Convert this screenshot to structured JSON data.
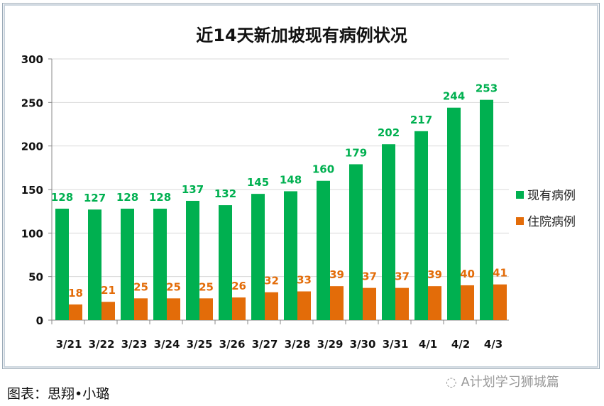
{
  "chart_data": {
    "type": "bar",
    "title": "近14天新加坡现有病例状况",
    "categories": [
      "3/21",
      "3/22",
      "3/23",
      "3/24",
      "3/25",
      "3/26",
      "3/27",
      "3/28",
      "3/29",
      "3/30",
      "3/31",
      "4/1",
      "4/2",
      "4/3"
    ],
    "series": [
      {
        "name": "现有病例",
        "color": "#00b050",
        "values": [
          128,
          127,
          128,
          128,
          137,
          132,
          145,
          148,
          160,
          179,
          202,
          217,
          244,
          253
        ]
      },
      {
        "name": "住院病例",
        "color": "#e36c09",
        "values": [
          18,
          21,
          25,
          25,
          25,
          26,
          32,
          33,
          39,
          37,
          37,
          39,
          40,
          41
        ]
      }
    ],
    "ylim": [
      0,
      300
    ],
    "yticks": [
      0,
      50,
      100,
      150,
      200,
      250,
      300
    ],
    "grid": true,
    "legend": "right"
  },
  "caption": "图表：思翔•小璐",
  "watermark": "A计划学习狮城篇"
}
